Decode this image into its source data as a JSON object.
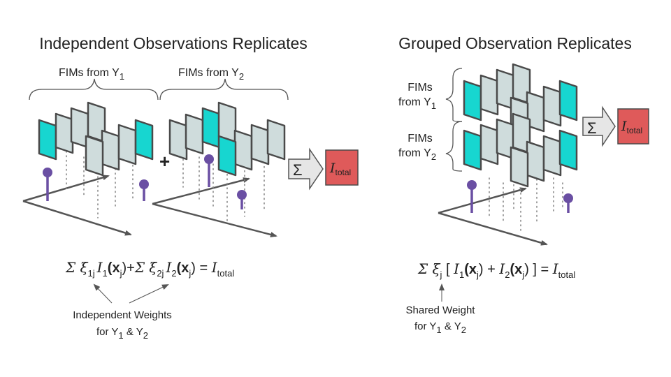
{
  "left": {
    "title": "Independent Observations Replicates",
    "brace_a": {
      "prefix": "FIMs from Y",
      "sub": "1"
    },
    "brace_b": {
      "prefix": "FIMs from Y",
      "sub": "2"
    },
    "plus": "+",
    "sum_symbol": "Σ",
    "total": {
      "sym": "I",
      "sub": "total"
    },
    "eq": {
      "sig1": "Σ ξ",
      "sub1": "1j",
      "i1": "I",
      "i1sub": "1",
      "x1": "(x",
      "x1sub": "j",
      "x1end": ")+",
      "sig2": "Σ ξ",
      "sub2": "2j",
      "i2": "I",
      "i2sub": "2",
      "x2": "(x",
      "x2sub": "j",
      "x2end": ") = ",
      "tot": "I",
      "totsub": "total"
    },
    "note": {
      "line1": "Independent Weights",
      "line2a": "for Y",
      "line2s1": "1",
      "line2b": " & Y",
      "line2s2": "2"
    }
  },
  "right": {
    "title": "Grouped Observation Replicates",
    "brace_a": {
      "line1": "FIMs",
      "line2": "from Y",
      "sub": "1"
    },
    "brace_b": {
      "line1": "FIMs",
      "line2": "from Y",
      "sub": "2"
    },
    "sum_symbol": "Σ",
    "total": {
      "sym": "I",
      "sub": "total"
    },
    "eq": {
      "sig": "Σ ξ",
      "sub": "j",
      "open": " [ ",
      "i1": "I",
      "i1sub": "1",
      "x1": "(x",
      "x1sub": "j",
      "x1end": ") + ",
      "i2": "I",
      "i2sub": "2",
      "x2": "(x",
      "x2sub": "j",
      "x2end": ") ] = ",
      "tot": "I",
      "totsub": "total"
    },
    "note": {
      "line1": "Shared Weight",
      "line2a": "for Y",
      "line2s1": "1",
      "line2b": " & Y",
      "line2s2": "2"
    }
  },
  "colors": {
    "fim_highlight": "#17d6d0",
    "fim_default": "#cfdcdc",
    "fim_stroke": "#4a4a4a",
    "total_fill": "#df5a5a",
    "pin": "#6a4fa3",
    "axis": "#555555"
  }
}
